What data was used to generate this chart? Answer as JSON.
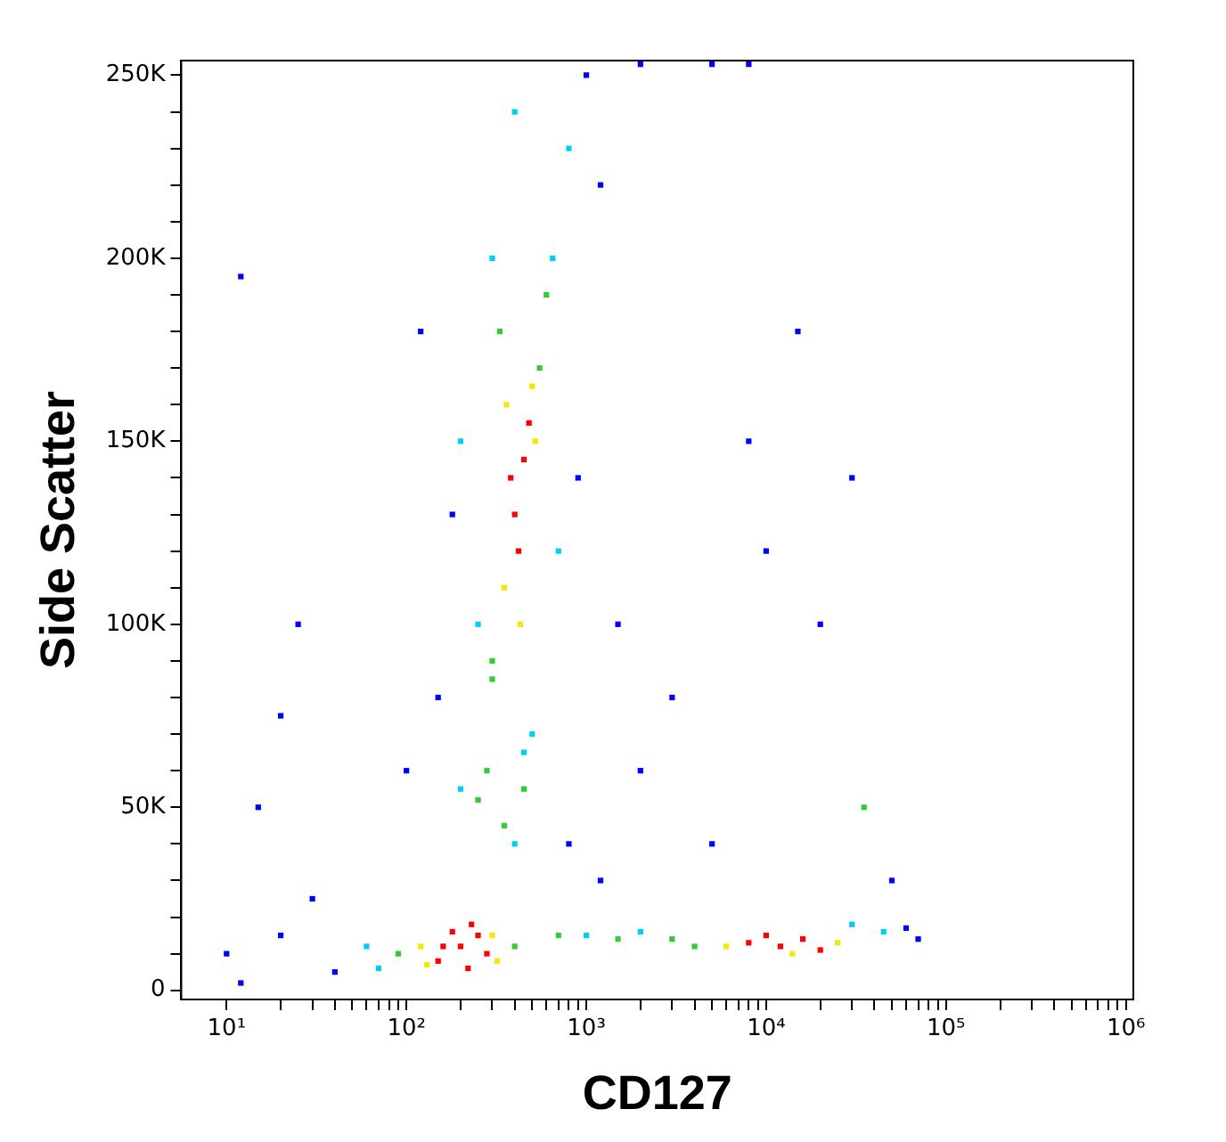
{
  "chart_data": {
    "type": "scatter",
    "xlabel": "CD127",
    "ylabel": "Side Scatter",
    "log": "x",
    "grid": false,
    "legend": false,
    "marker": "square",
    "xlim": [
      5.6,
      1100000
    ],
    "xticks": [
      {
        "value": 10,
        "label": "10¹"
      },
      {
        "value": 20,
        "label": null
      },
      {
        "value": 30,
        "label": null
      },
      {
        "value": 40,
        "label": null
      },
      {
        "value": 50,
        "label": null
      },
      {
        "value": 60,
        "label": null
      },
      {
        "value": 70,
        "label": null
      },
      {
        "value": 80,
        "label": null
      },
      {
        "value": 90,
        "label": null
      },
      {
        "value": 100,
        "label": "10²"
      },
      {
        "value": 200,
        "label": null
      },
      {
        "value": 300,
        "label": null
      },
      {
        "value": 400,
        "label": null
      },
      {
        "value": 500,
        "label": null
      },
      {
        "value": 600,
        "label": null
      },
      {
        "value": 700,
        "label": null
      },
      {
        "value": 800,
        "label": null
      },
      {
        "value": 900,
        "label": null
      },
      {
        "value": 1000,
        "label": "10³"
      },
      {
        "value": 2000,
        "label": null
      },
      {
        "value": 3000,
        "label": null
      },
      {
        "value": 4000,
        "label": null
      },
      {
        "value": 5000,
        "label": null
      },
      {
        "value": 6000,
        "label": null
      },
      {
        "value": 7000,
        "label": null
      },
      {
        "value": 8000,
        "label": null
      },
      {
        "value": 9000,
        "label": null
      },
      {
        "value": 10000,
        "label": "10⁴"
      },
      {
        "value": 20000,
        "label": null
      },
      {
        "value": 30000,
        "label": null
      },
      {
        "value": 40000,
        "label": null
      },
      {
        "value": 50000,
        "label": null
      },
      {
        "value": 60000,
        "label": null
      },
      {
        "value": 70000,
        "label": null
      },
      {
        "value": 80000,
        "label": null
      },
      {
        "value": 90000,
        "label": null
      },
      {
        "value": 100000,
        "label": "10⁵"
      },
      {
        "value": 200000,
        "label": null
      },
      {
        "value": 300000,
        "label": null
      },
      {
        "value": 400000,
        "label": null
      },
      {
        "value": 500000,
        "label": null
      },
      {
        "value": 600000,
        "label": null
      },
      {
        "value": 700000,
        "label": null
      },
      {
        "value": 800000,
        "label": null
      },
      {
        "value": 900000,
        "label": null
      },
      {
        "value": 1000000,
        "label": "10⁶"
      }
    ],
    "ylim": [
      -2500,
      254000
    ],
    "yticks": [
      0,
      {
        "value": 10000,
        "label": null
      },
      {
        "value": 20000,
        "label": null
      },
      {
        "value": 30000,
        "label": null
      },
      {
        "value": 40000,
        "label": null
      },
      {
        "value": 50000,
        "label": "50K"
      },
      {
        "value": 60000,
        "label": null
      },
      {
        "value": 70000,
        "label": null
      },
      {
        "value": 80000,
        "label": null
      },
      {
        "value": 90000,
        "label": null
      },
      {
        "value": 100000,
        "label": "100K"
      },
      {
        "value": 110000,
        "label": null
      },
      {
        "value": 120000,
        "label": null
      },
      {
        "value": 130000,
        "label": null
      },
      {
        "value": 140000,
        "label": null
      },
      {
        "value": 150000,
        "label": "150K"
      },
      {
        "value": 160000,
        "label": null
      },
      {
        "value": 170000,
        "label": null
      },
      {
        "value": 180000,
        "label": null
      },
      {
        "value": 190000,
        "label": null
      },
      {
        "value": 200000,
        "label": "200K"
      },
      {
        "value": 210000,
        "label": null
      },
      {
        "value": 220000,
        "label": null
      },
      {
        "value": 230000,
        "label": null
      },
      {
        "value": 240000,
        "label": null
      },
      {
        "value": 250000,
        "label": "250K"
      }
    ],
    "series": [
      {
        "color": "#0000ff",
        "x": [
          10,
          20,
          30,
          40,
          12,
          60000,
          70000,
          100,
          150,
          180,
          120,
          900,
          1000,
          1200,
          1500,
          2000,
          3000,
          5000,
          8000,
          10000,
          15000,
          20000,
          30000,
          50000,
          15,
          20,
          25,
          12,
          800,
          1200,
          2000,
          5000,
          8000
        ],
        "values": [
          10000,
          15000,
          25000,
          5000,
          2000,
          17000,
          14000,
          60000,
          80000,
          130000,
          180000,
          140000,
          250000,
          220000,
          100000,
          60000,
          80000,
          40000,
          150000,
          120000,
          180000,
          100000,
          140000,
          30000,
          50000,
          75000,
          100000,
          195000,
          40000,
          30000,
          253000,
          253000,
          253000
        ]
      },
      {
        "color": "#00ccff",
        "x": [
          60,
          70,
          1000,
          2000,
          30000,
          45000,
          200,
          400,
          450,
          250,
          700,
          300,
          200,
          500,
          400,
          800,
          650
        ],
        "values": [
          12000,
          6000,
          15000,
          16000,
          18000,
          16000,
          55000,
          40000,
          65000,
          100000,
          120000,
          200000,
          150000,
          70000,
          240000,
          230000,
          200000
        ]
      },
      {
        "color": "#33cc33",
        "x": [
          90,
          400,
          700,
          1500,
          3000,
          4000,
          35000,
          250,
          350,
          300,
          330,
          600,
          550,
          300,
          450,
          280
        ],
        "values": [
          10000,
          12000,
          15000,
          14000,
          14000,
          12000,
          50000,
          52000,
          45000,
          90000,
          180000,
          190000,
          170000,
          85000,
          55000,
          60000
        ]
      },
      {
        "color": "#f5e800",
        "x": [
          120,
          300,
          130,
          320,
          6000,
          25000,
          14000,
          350,
          500,
          520,
          360,
          430
        ],
        "values": [
          12000,
          15000,
          7000,
          8000,
          12000,
          13000,
          10000,
          110000,
          165000,
          150000,
          160000,
          100000
        ]
      },
      {
        "color": "#ff0000",
        "x": [
          150,
          200,
          250,
          180,
          220,
          280,
          160,
          230,
          8000,
          12000,
          16000,
          20000,
          10000,
          400,
          450,
          420,
          480,
          380
        ],
        "values": [
          8000,
          12000,
          15000,
          16000,
          6000,
          10000,
          12000,
          18000,
          13000,
          12000,
          14000,
          11000,
          15000,
          130000,
          145000,
          120000,
          155000,
          140000
        ]
      }
    ]
  }
}
